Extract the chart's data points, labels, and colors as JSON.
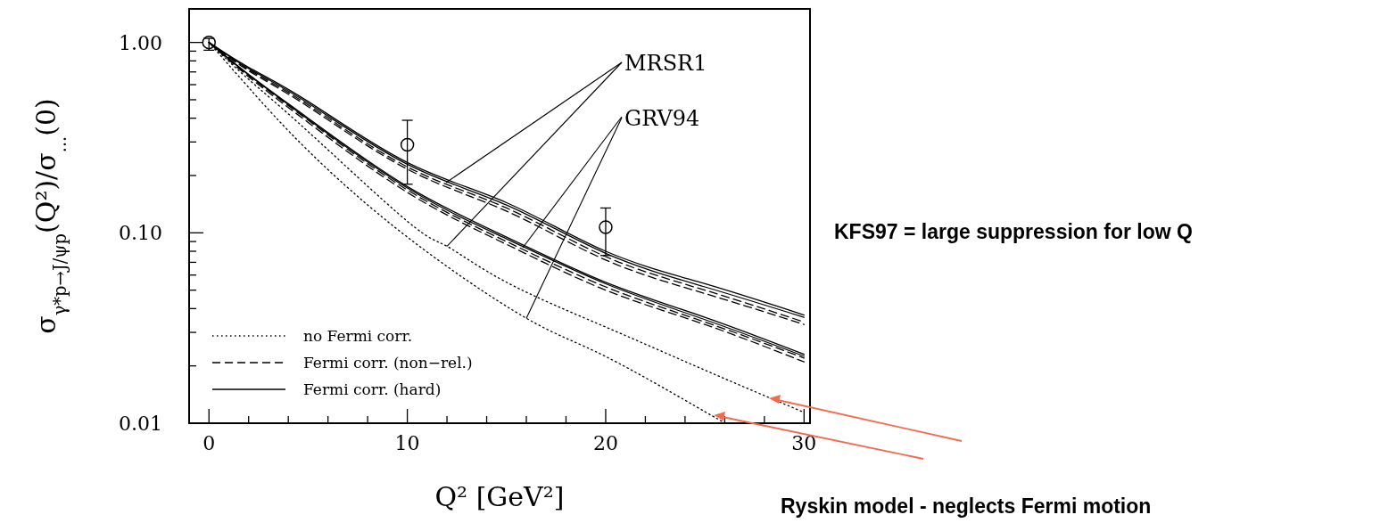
{
  "chart_data": {
    "type": "line",
    "xlabel": "Q² [GeV²]",
    "ylabel": "σ$_{γ*p→J/ψp}$(Q²)/σ$_{...}$(0)",
    "log": "y",
    "xlim": [
      -1,
      30.3
    ],
    "ylim": [
      0.01,
      1.5
    ],
    "xticks": [
      0,
      {
        "value": 2,
        "label": null
      },
      {
        "value": 4,
        "label": null
      },
      {
        "value": 6,
        "label": null
      },
      {
        "value": 8,
        "label": null
      },
      10,
      {
        "value": 12,
        "label": null
      },
      {
        "value": 14,
        "label": null
      },
      {
        "value": 16,
        "label": null
      },
      {
        "value": 18,
        "label": null
      },
      20,
      {
        "value": 22,
        "label": null
      },
      {
        "value": 24,
        "label": null
      },
      {
        "value": 26,
        "label": null
      },
      {
        "value": 28,
        "label": null
      },
      30
    ],
    "yticks": [
      {
        "value": 0.01,
        "label": "0.01"
      },
      {
        "value": 0.02,
        "label": null
      },
      {
        "value": 0.03,
        "label": null
      },
      {
        "value": 0.04,
        "label": null
      },
      {
        "value": 0.05,
        "label": null
      },
      {
        "value": 0.06,
        "label": null
      },
      {
        "value": 0.07,
        "label": null
      },
      {
        "value": 0.08,
        "label": null
      },
      {
        "value": 0.09,
        "label": null
      },
      {
        "value": 0.1,
        "label": "0.10"
      },
      {
        "value": 0.2,
        "label": null
      },
      {
        "value": 0.3,
        "label": null
      },
      {
        "value": 0.4,
        "label": null
      },
      {
        "value": 0.5,
        "label": null
      },
      {
        "value": 0.6,
        "label": null
      },
      {
        "value": 0.7,
        "label": null
      },
      {
        "value": 0.8,
        "label": null
      },
      {
        "value": 0.9,
        "label": null
      },
      {
        "value": 1,
        "label": "1.00"
      }
    ],
    "grid": false,
    "legend": "bottom left",
    "series": [
      {
        "name": "no Fermi corr.",
        "color": "#000000",
        "line_style": "dotted",
        "x": [
          0,
          2,
          5,
          10,
          12,
          15,
          20,
          25,
          30
        ],
        "values": [
          1,
          0.64,
          0.34,
          0.115,
          0.085,
          0.055,
          0.032,
          0.019,
          0.0114
        ]
      },
      {
        "color": "#000000",
        "line_style": "dotted",
        "x": [
          0,
          2,
          5,
          10,
          16,
          20,
          25,
          26
        ],
        "values": [
          1,
          0.58,
          0.27,
          0.095,
          0.0356,
          0.0224,
          0.0115,
          0.0101
        ]
      },
      {
        "name": "Fermi corr. (non−rel.)",
        "color": "#000000",
        "line_style": "dashed",
        "x": [
          0,
          2,
          5,
          10,
          15,
          20,
          25,
          30
        ],
        "values": [
          1,
          0.72,
          0.47,
          0.222,
          0.135,
          0.075,
          0.05,
          0.034
        ]
      },
      {
        "color": "#000000",
        "line_style": "dashed",
        "x": [
          0,
          2,
          5,
          10,
          15,
          20,
          25,
          30
        ],
        "values": [
          1,
          0.71,
          0.46,
          0.216,
          0.13,
          0.072,
          0.048,
          0.033
        ]
      },
      {
        "color": "#000000",
        "line_style": "dashed",
        "x": [
          0,
          2,
          5,
          10,
          15,
          20,
          25,
          30
        ],
        "values": [
          1,
          0.67,
          0.39,
          0.168,
          0.09,
          0.052,
          0.034,
          0.022
        ]
      },
      {
        "color": "#000000",
        "line_style": "dashed",
        "x": [
          0,
          2,
          5,
          10,
          15,
          20,
          25,
          30
        ],
        "values": [
          1,
          0.66,
          0.38,
          0.163,
          0.087,
          0.05,
          0.033,
          0.021
        ]
      },
      {
        "name": "Fermi corr. (hard)",
        "color": "#000000",
        "line_style": "solid",
        "x": [
          0,
          2,
          5,
          10,
          15,
          20,
          25,
          30
        ],
        "values": [
          1,
          0.74,
          0.49,
          0.234,
          0.144,
          0.08,
          0.054,
          0.037
        ]
      },
      {
        "color": "#000000",
        "line_style": "solid",
        "x": [
          0,
          2,
          5,
          10,
          15,
          20,
          25,
          30
        ],
        "values": [
          1,
          0.73,
          0.48,
          0.229,
          0.14,
          0.078,
          0.052,
          0.036
        ]
      },
      {
        "color": "#000000",
        "line_style": "solid",
        "x": [
          0,
          2,
          5,
          10,
          15,
          20,
          25,
          30
        ],
        "values": [
          1,
          0.68,
          0.4,
          0.175,
          0.095,
          0.055,
          0.036,
          0.023
        ]
      },
      {
        "color": "#000000",
        "line_style": "solid",
        "x": [
          0,
          2,
          5,
          10,
          15,
          20,
          25,
          30
        ],
        "values": [
          1,
          0.675,
          0.395,
          0.172,
          0.093,
          0.054,
          0.035,
          0.0225
        ]
      },
      {
        "type": "scatter",
        "marker": "circle",
        "color": "#000000",
        "x": [
          0,
          10,
          20
        ],
        "values": [
          1,
          0.29,
          0.107
        ],
        "errors": [
          [
            0.91,
            1.05
          ],
          [
            0.18,
            0.39
          ],
          [
            0.076,
            0.135
          ]
        ]
      }
    ],
    "annotations": [
      {
        "text": "MRSR1",
        "x": 12,
        "y": 0.085
      },
      {
        "text": "GRV94",
        "x": 16,
        "y": 0.0356
      },
      "KFS97 = large suppression for low Q",
      "Ryskin model - neglects Fermi motion"
    ]
  }
}
